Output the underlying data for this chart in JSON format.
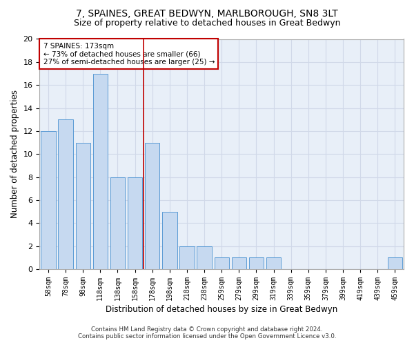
{
  "title": "7, SPAINES, GREAT BEDWYN, MARLBOROUGH, SN8 3LT",
  "subtitle": "Size of property relative to detached houses in Great Bedwyn",
  "xlabel": "Distribution of detached houses by size in Great Bedwyn",
  "ylabel": "Number of detached properties",
  "categories": [
    "58sqm",
    "78sqm",
    "98sqm",
    "118sqm",
    "138sqm",
    "158sqm",
    "178sqm",
    "198sqm",
    "218sqm",
    "238sqm",
    "259sqm",
    "279sqm",
    "299sqm",
    "319sqm",
    "339sqm",
    "359sqm",
    "379sqm",
    "399sqm",
    "419sqm",
    "439sqm",
    "459sqm"
  ],
  "values": [
    12,
    13,
    11,
    17,
    8,
    8,
    11,
    5,
    2,
    2,
    1,
    1,
    1,
    1,
    0,
    0,
    0,
    0,
    0,
    0,
    1
  ],
  "bar_color": "#c6d9f0",
  "bar_edge_color": "#5b9bd5",
  "vline_color": "#c00000",
  "vline_x": 5.5,
  "annotation_text": "7 SPAINES: 173sqm\n← 73% of detached houses are smaller (66)\n27% of semi-detached houses are larger (25) →",
  "annotation_box_color": "#ffffff",
  "annotation_box_edge_color": "#c00000",
  "ylim": [
    0,
    20
  ],
  "yticks": [
    0,
    2,
    4,
    6,
    8,
    10,
    12,
    14,
    16,
    18,
    20
  ],
  "title_fontsize": 10,
  "subtitle_fontsize": 9,
  "xlabel_fontsize": 8.5,
  "ylabel_fontsize": 8.5,
  "footer_line1": "Contains HM Land Registry data © Crown copyright and database right 2024.",
  "footer_line2": "Contains public sector information licensed under the Open Government Licence v3.0.",
  "grid_color": "#d0d8e8",
  "background_color": "#e8eff8"
}
